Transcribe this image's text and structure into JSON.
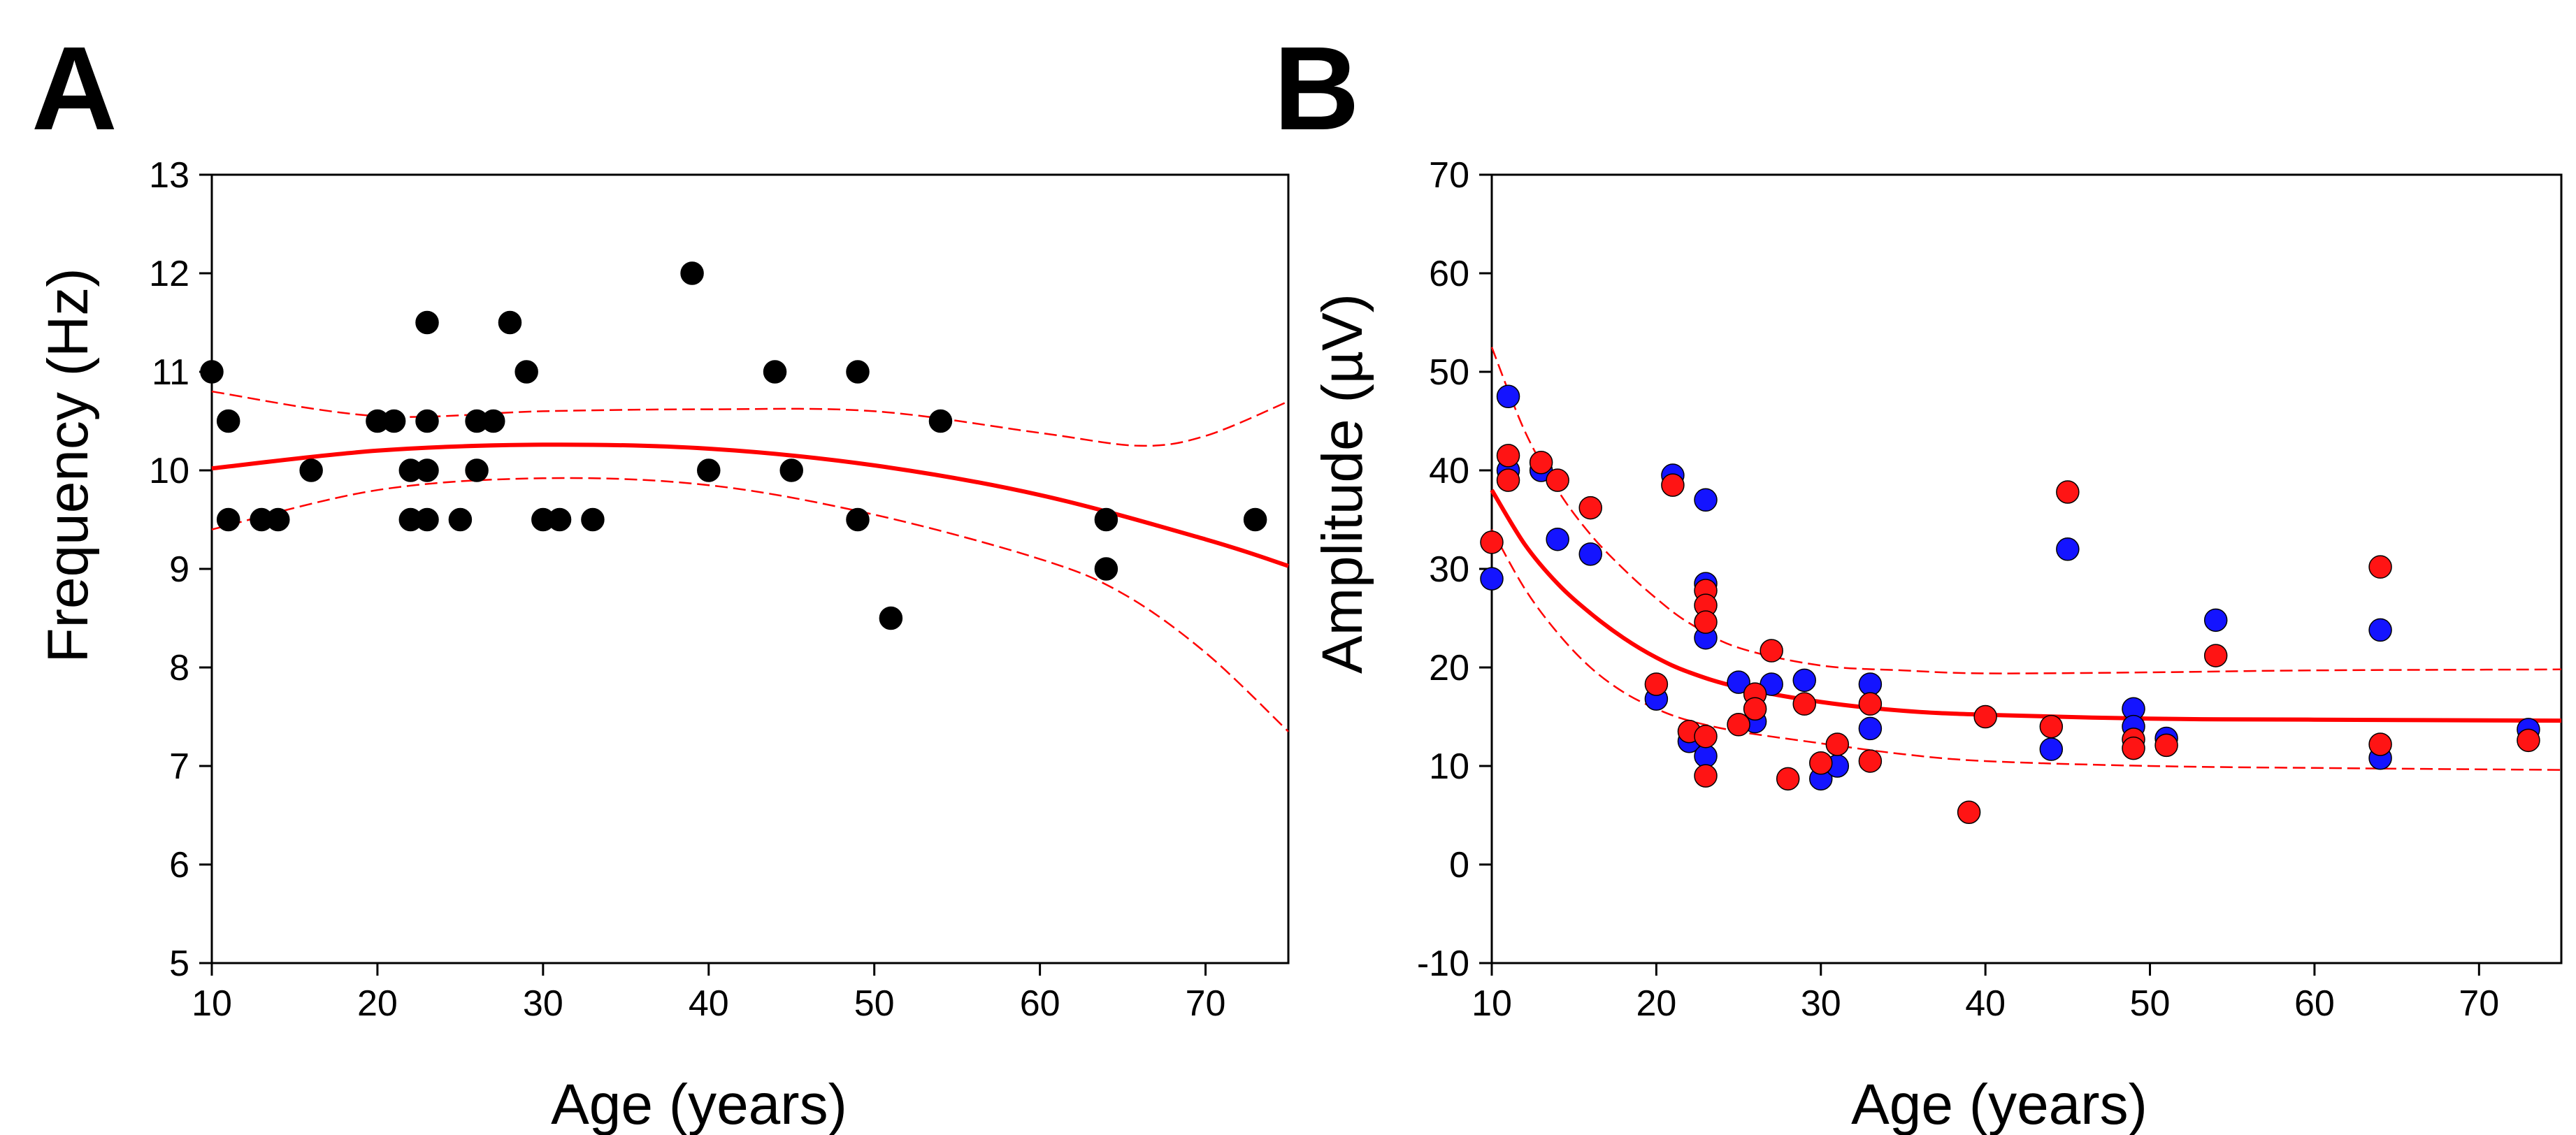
{
  "chart_data": [
    {
      "panel": "A",
      "type": "scatter",
      "xlabel": "Age (years)",
      "ylabel": "Frequency (Hz)",
      "xlim": [
        10,
        75
      ],
      "ylim": [
        5,
        13
      ],
      "xticks": [
        10,
        20,
        30,
        40,
        50,
        60,
        70
      ],
      "yticks": [
        5,
        6,
        7,
        8,
        9,
        10,
        11,
        12,
        13
      ],
      "grid": false,
      "series": [
        {
          "name": "Frequency",
          "color": "#000000",
          "points": [
            [
              10,
              11
            ],
            [
              11,
              10.5
            ],
            [
              11,
              9.5
            ],
            [
              13,
              9.5
            ],
            [
              14,
              9.5
            ],
            [
              16,
              10
            ],
            [
              20,
              10.5
            ],
            [
              21,
              10.5
            ],
            [
              22,
              10
            ],
            [
              22,
              9.5
            ],
            [
              23,
              11.5
            ],
            [
              23,
              10.5
            ],
            [
              23,
              10
            ],
            [
              23,
              9.5
            ],
            [
              25,
              9.5
            ],
            [
              26,
              10.5
            ],
            [
              26,
              10
            ],
            [
              27,
              10.5
            ],
            [
              28,
              11.5
            ],
            [
              29,
              11
            ],
            [
              30,
              9.5
            ],
            [
              31,
              9.5
            ],
            [
              33,
              9.5
            ],
            [
              39,
              12
            ],
            [
              40,
              10
            ],
            [
              44,
              11
            ],
            [
              45,
              10
            ],
            [
              49,
              11
            ],
            [
              49,
              9.5
            ],
            [
              51,
              8.5
            ],
            [
              54,
              10.5
            ],
            [
              64,
              9.5
            ],
            [
              64,
              9
            ],
            [
              73,
              9.5
            ]
          ]
        }
      ],
      "fit": {
        "color": "#ff0000",
        "center": [
          [
            10,
            10.02
          ],
          [
            20,
            10.2
          ],
          [
            30,
            10.26
          ],
          [
            40,
            10.22
          ],
          [
            50,
            10.05
          ],
          [
            60,
            9.75
          ],
          [
            70,
            9.3
          ],
          [
            75,
            9.03
          ]
        ],
        "upper": [
          [
            10,
            10.8
          ],
          [
            20,
            10.55
          ],
          [
            30,
            10.6
          ],
          [
            40,
            10.62
          ],
          [
            50,
            10.6
          ],
          [
            60,
            10.38
          ],
          [
            66,
            10.25
          ],
          [
            70,
            10.35
          ],
          [
            75,
            10.7
          ]
        ],
        "lower": [
          [
            10,
            9.4
          ],
          [
            20,
            9.8
          ],
          [
            30,
            9.92
          ],
          [
            40,
            9.85
          ],
          [
            50,
            9.55
          ],
          [
            60,
            9.1
          ],
          [
            65,
            8.75
          ],
          [
            70,
            8.15
          ],
          [
            75,
            7.35
          ]
        ]
      }
    },
    {
      "panel": "B",
      "type": "scatter",
      "xlabel": "Age (years)",
      "ylabel": "Amplitude (µV)",
      "xlim": [
        10,
        75
      ],
      "ylim": [
        -10,
        70
      ],
      "xticks": [
        10,
        20,
        30,
        40,
        50,
        60,
        70
      ],
      "yticks": [
        -10,
        0,
        10,
        20,
        30,
        40,
        50,
        60,
        70
      ],
      "grid": false,
      "series": [
        {
          "name": "Blue series",
          "color": "#1414ff",
          "points": [
            [
              10,
              29
            ],
            [
              11,
              47.5
            ],
            [
              11,
              40
            ],
            [
              13,
              40
            ],
            [
              14,
              33
            ],
            [
              16,
              31.5
            ],
            [
              20,
              16.8
            ],
            [
              21,
              39.5
            ],
            [
              22,
              12.5
            ],
            [
              23,
              37
            ],
            [
              23,
              28.5
            ],
            [
              23,
              23
            ],
            [
              23,
              11
            ],
            [
              25,
              18.5
            ],
            [
              26,
              14.5
            ],
            [
              27,
              18.3
            ],
            [
              29,
              18.7
            ],
            [
              30,
              8.7
            ],
            [
              31,
              10
            ],
            [
              33,
              18.3
            ],
            [
              33,
              13.8
            ],
            [
              44,
              11.7
            ],
            [
              45,
              32
            ],
            [
              49,
              15.8
            ],
            [
              49,
              14
            ],
            [
              51,
              12.8
            ],
            [
              54,
              24.8
            ],
            [
              64,
              23.8
            ],
            [
              64,
              10.8
            ],
            [
              73,
              13.7
            ]
          ]
        },
        {
          "name": "Red series",
          "color": "#ff1414",
          "points": [
            [
              10,
              32.7
            ],
            [
              11,
              41.5
            ],
            [
              11,
              39
            ],
            [
              13,
              40.8
            ],
            [
              14,
              39
            ],
            [
              16,
              36.2
            ],
            [
              20,
              18.3
            ],
            [
              21,
              38.5
            ],
            [
              22,
              13.5
            ],
            [
              23,
              27.8
            ],
            [
              23,
              26.3
            ],
            [
              23,
              24.6
            ],
            [
              23,
              13
            ],
            [
              23,
              9
            ],
            [
              25,
              14.2
            ],
            [
              26,
              17.3
            ],
            [
              26,
              15.8
            ],
            [
              27,
              21.7
            ],
            [
              28,
              8.7
            ],
            [
              29,
              16.3
            ],
            [
              30,
              10.3
            ],
            [
              31,
              12.2
            ],
            [
              33,
              16.3
            ],
            [
              33,
              10.5
            ],
            [
              39,
              5.3
            ],
            [
              40,
              15
            ],
            [
              44,
              14
            ],
            [
              45,
              37.8
            ],
            [
              49,
              12.7
            ],
            [
              49,
              11.8
            ],
            [
              51,
              12.1
            ],
            [
              54,
              21.2
            ],
            [
              64,
              30.2
            ],
            [
              64,
              12.2
            ],
            [
              73,
              12.6
            ]
          ]
        }
      ],
      "fit": {
        "color": "#ff0000",
        "center": [
          [
            10,
            38
          ],
          [
            12,
            32.5
          ],
          [
            14,
            28.5
          ],
          [
            16,
            25.5
          ],
          [
            18,
            23
          ],
          [
            20,
            21
          ],
          [
            22,
            19.5
          ],
          [
            25,
            18
          ],
          [
            30,
            16.5
          ],
          [
            35,
            15.6
          ],
          [
            40,
            15.2
          ],
          [
            50,
            14.8
          ],
          [
            60,
            14.7
          ],
          [
            75,
            14.6
          ]
        ],
        "upper": [
          [
            10,
            52.5
          ],
          [
            12,
            44
          ],
          [
            14,
            38
          ],
          [
            16,
            33.5
          ],
          [
            18,
            30
          ],
          [
            20,
            27
          ],
          [
            22,
            24.5
          ],
          [
            25,
            22
          ],
          [
            30,
            20.2
          ],
          [
            35,
            19.7
          ],
          [
            40,
            19.4
          ],
          [
            50,
            19.5
          ],
          [
            60,
            19.7
          ],
          [
            75,
            19.8
          ]
        ],
        "lower": [
          [
            10,
            34
          ],
          [
            12,
            28
          ],
          [
            14,
            23.5
          ],
          [
            16,
            20
          ],
          [
            18,
            17.5
          ],
          [
            20,
            15.8
          ],
          [
            22,
            14.6
          ],
          [
            25,
            13.5
          ],
          [
            30,
            12.3
          ],
          [
            35,
            11.2
          ],
          [
            40,
            10.5
          ],
          [
            50,
            10
          ],
          [
            60,
            9.8
          ],
          [
            75,
            9.6
          ]
        ]
      }
    }
  ]
}
